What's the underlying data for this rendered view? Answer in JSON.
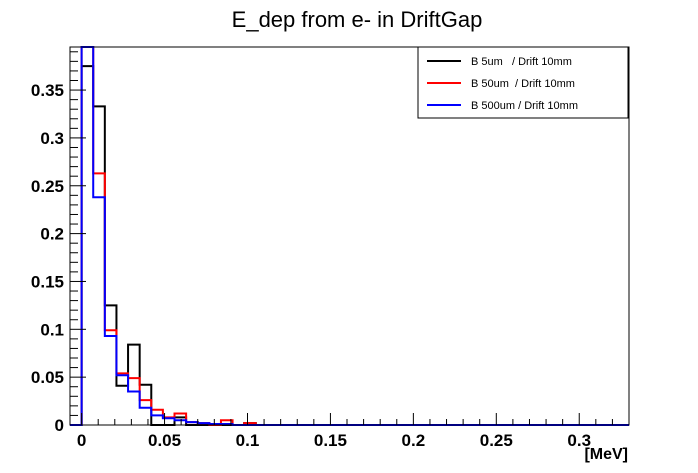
{
  "chart_data": {
    "type": "histogram",
    "title": "E_dep from e- in DriftGap",
    "xlabel": "[MeV]",
    "ylabel": "",
    "xlim": [
      -0.007,
      0.33
    ],
    "ylim": [
      0,
      0.395
    ],
    "x_ticks": [
      0,
      0.05,
      0.1,
      0.15,
      0.2,
      0.25,
      0.3
    ],
    "x_tick_labels": [
      "0",
      "0.05",
      "0.1",
      "0.15",
      "0.2",
      "0.25",
      "0.3"
    ],
    "y_ticks": [
      0,
      0.05,
      0.1,
      0.15,
      0.2,
      0.25,
      0.3,
      0.35
    ],
    "y_tick_labels": [
      "0",
      "0.05",
      "0.1",
      "0.15",
      "0.2",
      "0.25",
      "0.3",
      "0.35"
    ],
    "bin_width": 0.007,
    "bin_edges_start": -0.007,
    "legend_position": "top-right",
    "series": [
      {
        "name": "B 5um   / Drift 10mm",
        "color": "#000000",
        "values": [
          0.0,
          0.375,
          0.333,
          0.125,
          0.041,
          0.084,
          0.042,
          0.0,
          0.0,
          0.008,
          0.0,
          0.0,
          0.0,
          0.0,
          0.0,
          0.002,
          0.0
        ]
      },
      {
        "name": "B 50um  / Drift 10mm",
        "color": "#ff0000",
        "values": [
          0.0,
          0.395,
          0.263,
          0.099,
          0.054,
          0.049,
          0.026,
          0.016,
          0.008,
          0.012,
          0.003,
          0.002,
          0.0,
          0.005,
          0.0,
          0.002,
          0.0
        ]
      },
      {
        "name": "B 500um / Drift 10mm",
        "color": "#0000ff",
        "values": [
          0.0,
          0.395,
          0.238,
          0.093,
          0.052,
          0.035,
          0.018,
          0.01,
          0.007,
          0.005,
          0.003,
          0.002,
          0.001,
          0.001,
          0.0,
          0.0,
          0.0
        ]
      }
    ]
  }
}
